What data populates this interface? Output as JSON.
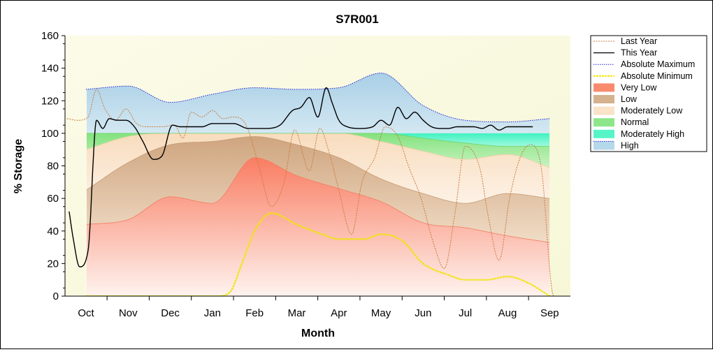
{
  "chart_data": {
    "type": "area",
    "title": "S7R001",
    "xlabel": "Month",
    "ylabel": "% Storage",
    "ylim": [
      0,
      160
    ],
    "yticks": [
      0,
      20,
      40,
      60,
      80,
      100,
      120,
      140,
      160
    ],
    "month_labels": [
      "Oct",
      "Nov",
      "Dec",
      "Jan",
      "Feb",
      "Mar",
      "Apr",
      "May",
      "Jun",
      "Jul",
      "Aug",
      "Sep"
    ],
    "grid": false,
    "legend_position": "right",
    "colors": {
      "plot_background": "#fbfbe6",
      "very_low": "#fa8a6e",
      "low": "#d4b28e",
      "moderately_low": "#fae3c8",
      "normal": "#8ee68a",
      "moderately_high": "#55f5c8",
      "high": "#b5d8ea",
      "last_year": "#c87a3c",
      "this_year": "#000000",
      "absolute_maximum": "#2323d2",
      "absolute_minimum": "#f0e600"
    },
    "band_x": [
      0.0,
      1.0,
      2.0,
      3.0,
      4.0,
      5.0,
      6.0,
      7.0,
      8.0,
      9.0,
      10.0,
      11.0
    ],
    "bands": {
      "very_low_top": [
        44,
        47,
        61,
        57,
        85,
        74,
        66,
        58,
        45,
        42,
        37,
        33
      ],
      "low_top": [
        65,
        82,
        93,
        95,
        98,
        93,
        85,
        72,
        63,
        57,
        63,
        60
      ],
      "mod_low_top": [
        90,
        98,
        100,
        100,
        100,
        100,
        100,
        95,
        89,
        84,
        87,
        79
      ],
      "normal_top": [
        100,
        100,
        100,
        100,
        100,
        100,
        100,
        100,
        97,
        94,
        92,
        92
      ],
      "mod_high_top": [
        100,
        100,
        100,
        100,
        100,
        100,
        100,
        100,
        100,
        100,
        100,
        100
      ],
      "high_top": [
        127,
        129,
        119,
        124,
        128,
        127,
        128,
        137,
        117,
        108,
        107,
        109
      ]
    },
    "series": [
      {
        "name": "Last Year",
        "x": [
          -0.45,
          -0.2,
          0.05,
          0.25,
          0.45,
          0.7,
          0.95,
          1.2,
          1.5,
          1.8,
          2.1,
          2.3,
          2.5,
          2.75,
          3.0,
          3.25,
          3.5,
          3.8,
          4.1,
          4.4,
          4.7,
          4.95,
          5.3,
          5.55,
          5.75,
          6.0,
          6.3,
          6.55,
          6.85,
          7.1,
          7.4,
          7.65,
          7.95,
          8.25,
          8.5,
          8.75,
          9.0,
          9.35,
          9.55,
          9.8,
          10.05,
          10.3,
          10.55,
          10.8,
          11.1,
          11.4
        ],
        "values": [
          109,
          108,
          110,
          127,
          115,
          108,
          115,
          106,
          104,
          104,
          105,
          97,
          113,
          110,
          114,
          109,
          110,
          105,
          80,
          55,
          70,
          102,
          77,
          103,
          90,
          65,
          38,
          70,
          85,
          104,
          98,
          80,
          60,
          32,
          17,
          50,
          92,
          78,
          48,
          22,
          60,
          85,
          93,
          79,
          0,
          0
        ]
      },
      {
        "name": "This Year",
        "x": [
          -0.4,
          -0.3,
          -0.15,
          0.05,
          0.25,
          0.4,
          0.55,
          0.75,
          0.95,
          1.15,
          1.35,
          1.6,
          1.8,
          2.05,
          2.25,
          2.5,
          2.75,
          3.0,
          3.25,
          3.5,
          3.85,
          4.25,
          4.6,
          4.9,
          5.1,
          5.3,
          5.5,
          5.7,
          5.85,
          6.0,
          6.2,
          6.5,
          6.8,
          7.0,
          7.2,
          7.4,
          7.6,
          7.8,
          8.0,
          8.2,
          8.4,
          8.6,
          8.8,
          9.0,
          9.2,
          9.4,
          9.6,
          9.8,
          10.0,
          10.2,
          10.4,
          10.6
        ],
        "values": [
          52,
          35,
          18,
          28,
          108,
          103,
          109,
          108,
          108,
          104,
          95,
          84,
          86,
          105,
          104,
          104,
          104,
          106,
          106,
          106,
          103,
          103,
          105,
          114,
          116,
          122,
          110,
          128,
          118,
          108,
          104,
          103,
          104,
          108,
          105,
          116,
          109,
          113,
          108,
          104,
          103,
          103,
          104,
          104,
          104,
          103,
          105,
          102,
          104,
          104,
          104,
          104
        ]
      },
      {
        "name": "Absolute Maximum",
        "x": [
          0.0,
          1.0,
          2.0,
          3.0,
          4.0,
          5.0,
          6.0,
          7.0,
          8.0,
          9.0,
          10.0,
          11.0
        ],
        "values": [
          127,
          129,
          119,
          124,
          128,
          127,
          128,
          137,
          117,
          108,
          107,
          109
        ]
      },
      {
        "name": "Absolute Minimum",
        "x": [
          0.0,
          1.0,
          2.0,
          2.7,
          3.1,
          3.4,
          3.7,
          4.0,
          4.4,
          5.0,
          5.6,
          6.0,
          6.6,
          7.0,
          7.5,
          8.0,
          8.6,
          9.0,
          9.5,
          10.0,
          10.5,
          11.0
        ],
        "values": [
          0,
          0,
          0,
          0,
          0,
          2,
          20,
          40,
          51,
          44,
          38,
          35,
          35,
          38,
          34,
          20,
          13,
          10,
          10,
          12,
          8,
          0
        ]
      }
    ],
    "legend": [
      "Last Year",
      "This Year",
      "Absolute Maximum",
      "Absolute Minimum",
      "Very Low",
      "Low",
      "Moderately Low",
      "Normal",
      "Moderately High",
      "High"
    ]
  }
}
